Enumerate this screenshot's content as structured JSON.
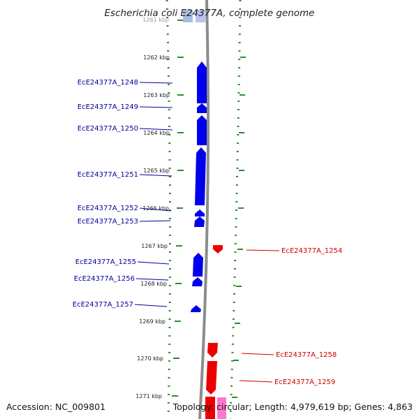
{
  "title": "Escherichia coli E24377A, complete genome",
  "accession": "Accession: NC_009801",
  "topology": "Topology: circular; Length: 4,979,619 bp; Genes: 4,863",
  "colors": {
    "forward_gene": "#0000ee",
    "forward_label": "#000099",
    "reverse_gene": "#ee0000",
    "reverse_label": "#cc0000",
    "dots": "#2e8b2e",
    "backbone": "#8c8c8c"
  },
  "ticks": [
    {
      "label": "1261 kbp",
      "kbp": 1261
    },
    {
      "label": "1262 kbp",
      "kbp": 1262
    },
    {
      "label": "1263 kbp",
      "kbp": 1263
    },
    {
      "label": "1264 kbp",
      "kbp": 1264
    },
    {
      "label": "1265 kbp",
      "kbp": 1265
    },
    {
      "label": "1266 kbp",
      "kbp": 1266
    },
    {
      "label": "1267 kbp",
      "kbp": 1267
    },
    {
      "label": "1268 kbp",
      "kbp": 1268
    },
    {
      "label": "1269 kbp",
      "kbp": 1269
    },
    {
      "label": "1270 kbp",
      "kbp": 1270
    },
    {
      "label": "1271 kbp",
      "kbp": 1271
    }
  ],
  "genes": [
    {
      "label": "EcE24377A_1248",
      "strand": "forward"
    },
    {
      "label": "EcE24377A_1249",
      "strand": "forward"
    },
    {
      "label": "EcE24377A_1250",
      "strand": "forward"
    },
    {
      "label": "EcE24377A_1251",
      "strand": "forward"
    },
    {
      "label": "EcE24377A_1252",
      "strand": "forward"
    },
    {
      "label": "EcE24377A_1253",
      "strand": "forward"
    },
    {
      "label": "EcE24377A_1254",
      "strand": "reverse"
    },
    {
      "label": "EcE24377A_1255",
      "strand": "forward"
    },
    {
      "label": "EcE24377A_1256",
      "strand": "forward"
    },
    {
      "label": "EcE24377A_1257",
      "strand": "forward"
    },
    {
      "label": "EcE24377A_1258",
      "strand": "reverse"
    },
    {
      "label": "EcE24377A_1259",
      "strand": "reverse"
    }
  ]
}
